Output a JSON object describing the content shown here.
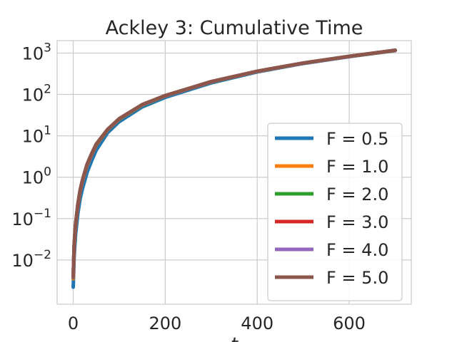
{
  "chart_data": {
    "type": "line",
    "title": "Ackley 3: Cumulative Time",
    "xlabel": "t",
    "ylabel": "",
    "yscale": "log",
    "xlim": [
      -35,
      735
    ],
    "ylim": [
      0.00085,
      2000
    ],
    "grid": true,
    "legend_position": "bottom-right",
    "x_ticks": [
      {
        "value": 0,
        "label": "0"
      },
      {
        "value": 200,
        "label": "200"
      },
      {
        "value": 400,
        "label": "400"
      },
      {
        "value": 600,
        "label": "600"
      }
    ],
    "y_ticks": [
      {
        "value": 0.01,
        "base": "10",
        "exp": "−2"
      },
      {
        "value": 0.1,
        "base": "10",
        "exp": "−1"
      },
      {
        "value": 1,
        "base": "10",
        "exp": "0"
      },
      {
        "value": 10,
        "base": "10",
        "exp": "1"
      },
      {
        "value": 100,
        "base": "10",
        "exp": "2"
      },
      {
        "value": 1000,
        "base": "10",
        "exp": "3"
      }
    ],
    "x": [
      0,
      2,
      5,
      10,
      15,
      20,
      30,
      40,
      50,
      75,
      100,
      150,
      200,
      300,
      400,
      500,
      600,
      700
    ],
    "series": [
      {
        "name": "F = 0.5",
        "color": "#1f77b4",
        "values": [
          0.0022,
          0.012,
          0.04,
          0.13,
          0.3,
          0.52,
          1.3,
          2.5,
          4.5,
          12,
          22,
          50,
          85,
          190,
          350,
          560,
          820,
          1150
        ]
      },
      {
        "name": "F = 1.0",
        "color": "#ff7f0e",
        "values": [
          0.0035,
          0.02,
          0.065,
          0.2,
          0.45,
          0.8,
          1.9,
          3.5,
          6,
          14,
          25,
          55,
          92,
          200,
          360,
          570,
          830,
          1160
        ]
      },
      {
        "name": "F = 2.0",
        "color": "#2ca02c",
        "values": [
          0.0037,
          0.021,
          0.068,
          0.21,
          0.46,
          0.82,
          1.95,
          3.6,
          6.1,
          14,
          25,
          55,
          92,
          200,
          360,
          570,
          830,
          1160
        ]
      },
      {
        "name": "F = 3.0",
        "color": "#d62728",
        "values": [
          0.0038,
          0.022,
          0.07,
          0.21,
          0.47,
          0.83,
          2.0,
          3.6,
          6.2,
          14.2,
          25.5,
          56,
          93,
          202,
          362,
          572,
          832,
          1165
        ]
      },
      {
        "name": "F = 4.0",
        "color": "#9467bd",
        "values": [
          0.0039,
          0.022,
          0.071,
          0.22,
          0.48,
          0.84,
          2.0,
          3.7,
          6.3,
          14.3,
          25.6,
          56,
          93,
          203,
          363,
          573,
          833,
          1168
        ]
      },
      {
        "name": "F = 5.0",
        "color": "#8c564b",
        "values": [
          0.004,
          0.023,
          0.072,
          0.22,
          0.49,
          0.85,
          2.05,
          3.7,
          6.3,
          14.4,
          26,
          57,
          94,
          205,
          365,
          575,
          835,
          1170
        ]
      }
    ]
  }
}
